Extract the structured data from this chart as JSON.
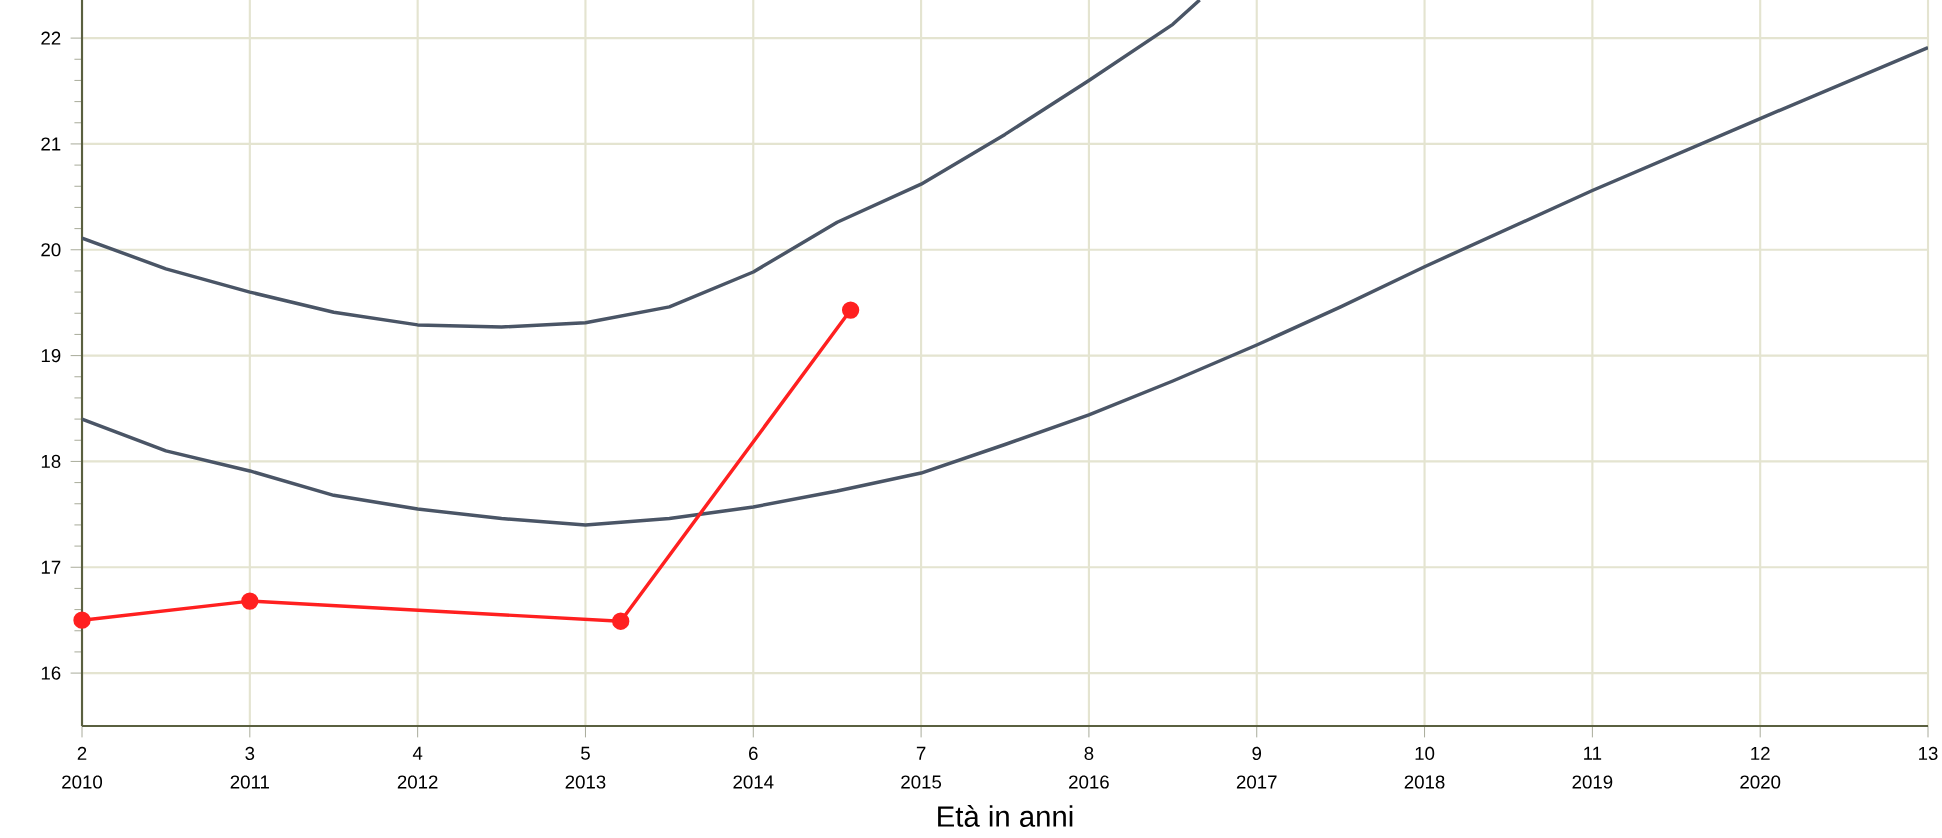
{
  "chart_data": {
    "type": "line",
    "xlabel": "Età in anni",
    "xlim": [
      2,
      13
    ],
    "ylim": [
      15.5,
      22.36
    ],
    "xticks": [
      2,
      3,
      4,
      5,
      6,
      7,
      8,
      9,
      10,
      11,
      12,
      13
    ],
    "x2lim": [
      2010,
      2021
    ],
    "x2ticks": [
      2010,
      2011,
      2012,
      2013,
      2014,
      2015,
      2016,
      2017,
      2018,
      2019,
      2020
    ],
    "yticks": [
      16,
      17,
      18,
      19,
      20,
      21,
      22
    ],
    "grid": true,
    "series": [
      {
        "color": "#4a5566",
        "marker": "none",
        "x": [
          2,
          2.5,
          3,
          3.5,
          4,
          4.5,
          5,
          5.5,
          6,
          6.5,
          7,
          7.5,
          8,
          8.5,
          8.66
        ],
        "values": [
          20.11,
          19.82,
          19.6,
          19.41,
          19.29,
          19.27,
          19.31,
          19.46,
          19.79,
          20.26,
          20.62,
          21.09,
          21.6,
          22.13,
          22.36
        ]
      },
      {
        "color": "#4a5566",
        "marker": "none",
        "x": [
          2,
          2.5,
          3,
          3.5,
          4,
          4.5,
          5,
          5.5,
          6,
          6.5,
          7,
          7.5,
          8,
          8.5,
          9,
          9.5,
          10,
          11,
          12,
          13
        ],
        "values": [
          18.4,
          18.1,
          17.91,
          17.68,
          17.55,
          17.46,
          17.4,
          17.46,
          17.57,
          17.72,
          17.89,
          18.16,
          18.44,
          18.76,
          19.1,
          19.46,
          19.84,
          20.56,
          21.24,
          21.91
        ]
      },
      {
        "color": "#ff2020",
        "marker": "circle",
        "x": [
          2,
          3,
          5.21,
          6.58
        ],
        "values": [
          16.5,
          16.68,
          16.49,
          19.43
        ]
      }
    ]
  }
}
